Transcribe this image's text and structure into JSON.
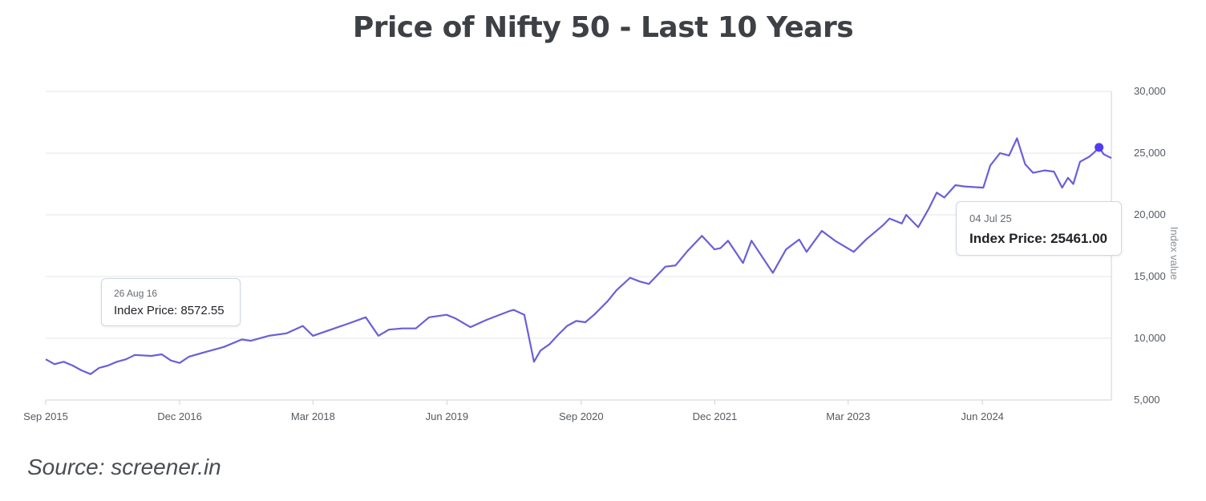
{
  "colors": {
    "line": "#6a5fd8",
    "marker": "#4f3df0",
    "grid": "#e4e6ea",
    "text": "#3d4045"
  },
  "source": "Source: screener.in",
  "tooltips": [
    {
      "date": "26 Aug 16",
      "text": "Index Price: 8572.55"
    },
    {
      "date": "04 Jul 25",
      "text": "Index Price: 25461.00"
    }
  ],
  "chart_data": {
    "type": "line",
    "title": "Price of Nifty 50 - Last 10 Years",
    "xlabel": "",
    "ylabel": "Index value",
    "x_ticks": [
      "Sep 2015",
      "Dec 2016",
      "Mar 2018",
      "Jun 2019",
      "Sep 2020",
      "Dec 2021",
      "Mar 2023",
      "Jun 2024"
    ],
    "y_ticks": [
      "5,000",
      "10,000",
      "15,000",
      "20,000",
      "25,000",
      "30,000"
    ],
    "y_tick_values": [
      5000,
      10000,
      15000,
      20000,
      25000,
      30000
    ],
    "ylim": [
      5000,
      30000
    ],
    "xlim": [
      "2015-09-01",
      "2025-08-15"
    ],
    "grid": true,
    "y_axis_side": "right",
    "highlight": {
      "x": "2025-07-04",
      "y": 25461.0
    },
    "series": [
      {
        "x": [
          "2015-09-01",
          "2015-10-01",
          "2015-11-01",
          "2015-12-01",
          "2016-01-01",
          "2016-02-01",
          "2016-03-01",
          "2016-04-01",
          "2016-05-01",
          "2016-06-01",
          "2016-07-01",
          "2016-08-26",
          "2016-10-01",
          "2016-11-01",
          "2016-12-01",
          "2017-01-01",
          "2017-03-01",
          "2017-05-01",
          "2017-07-01",
          "2017-08-01",
          "2017-10-01",
          "2017-12-01",
          "2018-01-25",
          "2018-03-01",
          "2018-05-01",
          "2018-07-01",
          "2018-08-28",
          "2018-10-10",
          "2018-11-15",
          "2018-12-31",
          "2019-02-15",
          "2019-04-01",
          "2019-05-31",
          "2019-07-01",
          "2019-08-20",
          "2019-10-15",
          "2019-12-31",
          "2020-01-15",
          "2020-02-20",
          "2020-03-24",
          "2020-04-15",
          "2020-05-15",
          "2020-06-15",
          "2020-07-15",
          "2020-08-15",
          "2020-09-15",
          "2020-10-15",
          "2020-11-30",
          "2020-12-31",
          "2021-02-15",
          "2021-03-20",
          "2021-04-20",
          "2021-06-15",
          "2021-07-20",
          "2021-08-31",
          "2021-10-18",
          "2021-11-30",
          "2021-12-20",
          "2022-01-15",
          "2022-03-07",
          "2022-04-05",
          "2022-06-17",
          "2022-08-01",
          "2022-09-15",
          "2022-10-10",
          "2022-12-01",
          "2023-01-15",
          "2023-03-20",
          "2023-05-01",
          "2023-06-30",
          "2023-07-20",
          "2023-08-31",
          "2023-09-15",
          "2023-10-26",
          "2023-12-01",
          "2023-12-28",
          "2024-01-23",
          "2024-03-01",
          "2024-04-01",
          "2024-06-04",
          "2024-06-28",
          "2024-07-31",
          "2024-08-31",
          "2024-09-27",
          "2024-10-25",
          "2024-11-21",
          "2024-12-31",
          "2025-01-31",
          "2025-02-28",
          "2025-03-20",
          "2025-04-07",
          "2025-04-30",
          "2025-05-31",
          "2025-06-15",
          "2025-07-04",
          "2025-07-20",
          "2025-08-15"
        ],
        "y": [
          8300,
          7900,
          8100,
          7800,
          7400,
          7100,
          7600,
          7800,
          8100,
          8300,
          8650,
          8572.55,
          8700,
          8200,
          8000,
          8500,
          8900,
          9300,
          9900,
          9800,
          10200,
          10400,
          11000,
          10200,
          10700,
          11200,
          11700,
          10200,
          10700,
          10800,
          10800,
          11700,
          11900,
          11600,
          10900,
          11500,
          12200,
          12300,
          11900,
          8100,
          9000,
          9500,
          10300,
          11000,
          11400,
          11300,
          11900,
          13000,
          13900,
          14900,
          14600,
          14400,
          15800,
          15900,
          17100,
          18300,
          17200,
          17300,
          17900,
          16100,
          17900,
          15300,
          17200,
          18000,
          17000,
          18700,
          17900,
          17000,
          18000,
          19200,
          19700,
          19300,
          20000,
          19000,
          20500,
          21800,
          21400,
          22400,
          22300,
          22200,
          24000,
          25000,
          24800,
          26200,
          24100,
          23400,
          23600,
          23500,
          22200,
          23000,
          22500,
          24300,
          24700,
          25000,
          25461,
          24900,
          24600
        ]
      }
    ]
  }
}
